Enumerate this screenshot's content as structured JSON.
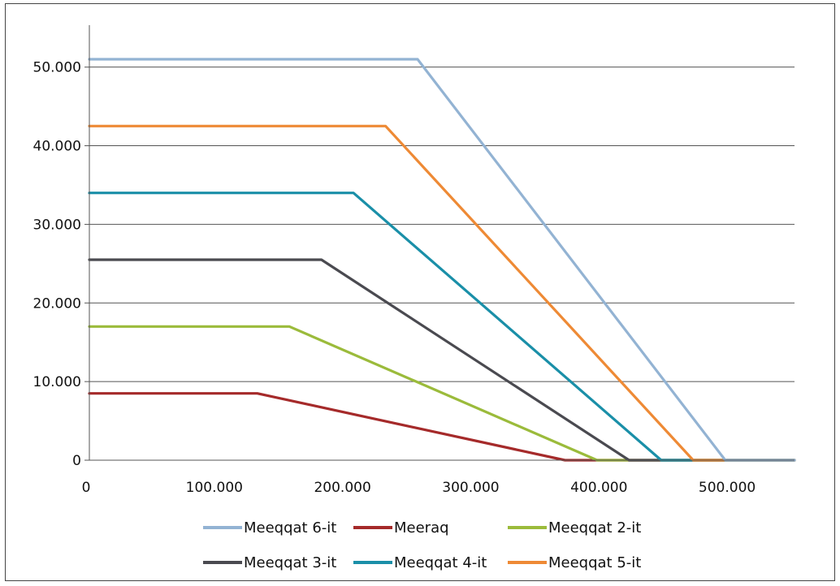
{
  "chart_data": {
    "type": "line",
    "title": "",
    "xlabel": "",
    "ylabel": "",
    "xlim": [
      0,
      550000
    ],
    "ylim": [
      0,
      50000
    ],
    "x_ticks": [
      0,
      100000,
      200000,
      300000,
      400000,
      500000
    ],
    "y_ticks": [
      0,
      10000,
      20000,
      30000,
      40000,
      50000
    ],
    "x_tick_labels": [
      "0",
      "100.000",
      "200.000",
      "300.000",
      "400.000",
      "500.000"
    ],
    "y_tick_labels": [
      "0",
      "10.000",
      "20.000",
      "30.000",
      "40.000",
      "50.000"
    ],
    "grid": "horizontal",
    "legend_position": "bottom",
    "series": [
      {
        "name": "Meeqqat 6-it",
        "color": "#93b3d3",
        "points": [
          [
            0,
            51000
          ],
          [
            256000,
            51000
          ],
          [
            496000,
            0
          ],
          [
            550000,
            0
          ]
        ]
      },
      {
        "name": "Meeraq",
        "color": "#a52a2a",
        "points": [
          [
            0,
            8500
          ],
          [
            131000,
            8500
          ],
          [
            371000,
            0
          ],
          [
            550000,
            0
          ]
        ]
      },
      {
        "name": "Meeqqat 2-it",
        "color": "#9bbb3b",
        "points": [
          [
            0,
            17000
          ],
          [
            156000,
            17000
          ],
          [
            396000,
            0
          ],
          [
            550000,
            0
          ]
        ]
      },
      {
        "name": "Meeqqat 3-it",
        "color": "#4a4a50",
        "points": [
          [
            0,
            25500
          ],
          [
            181000,
            25500
          ],
          [
            421000,
            0
          ],
          [
            550000,
            0
          ]
        ]
      },
      {
        "name": "Meeqqat 4-it",
        "color": "#1a8fa8",
        "points": [
          [
            0,
            34000
          ],
          [
            206000,
            34000
          ],
          [
            446000,
            0
          ],
          [
            550000,
            0
          ]
        ]
      },
      {
        "name": "Meeqqat 5-it",
        "color": "#ee8a35",
        "points": [
          [
            0,
            42500
          ],
          [
            231000,
            42500
          ],
          [
            471000,
            0
          ],
          [
            550000,
            0
          ]
        ]
      }
    ]
  }
}
